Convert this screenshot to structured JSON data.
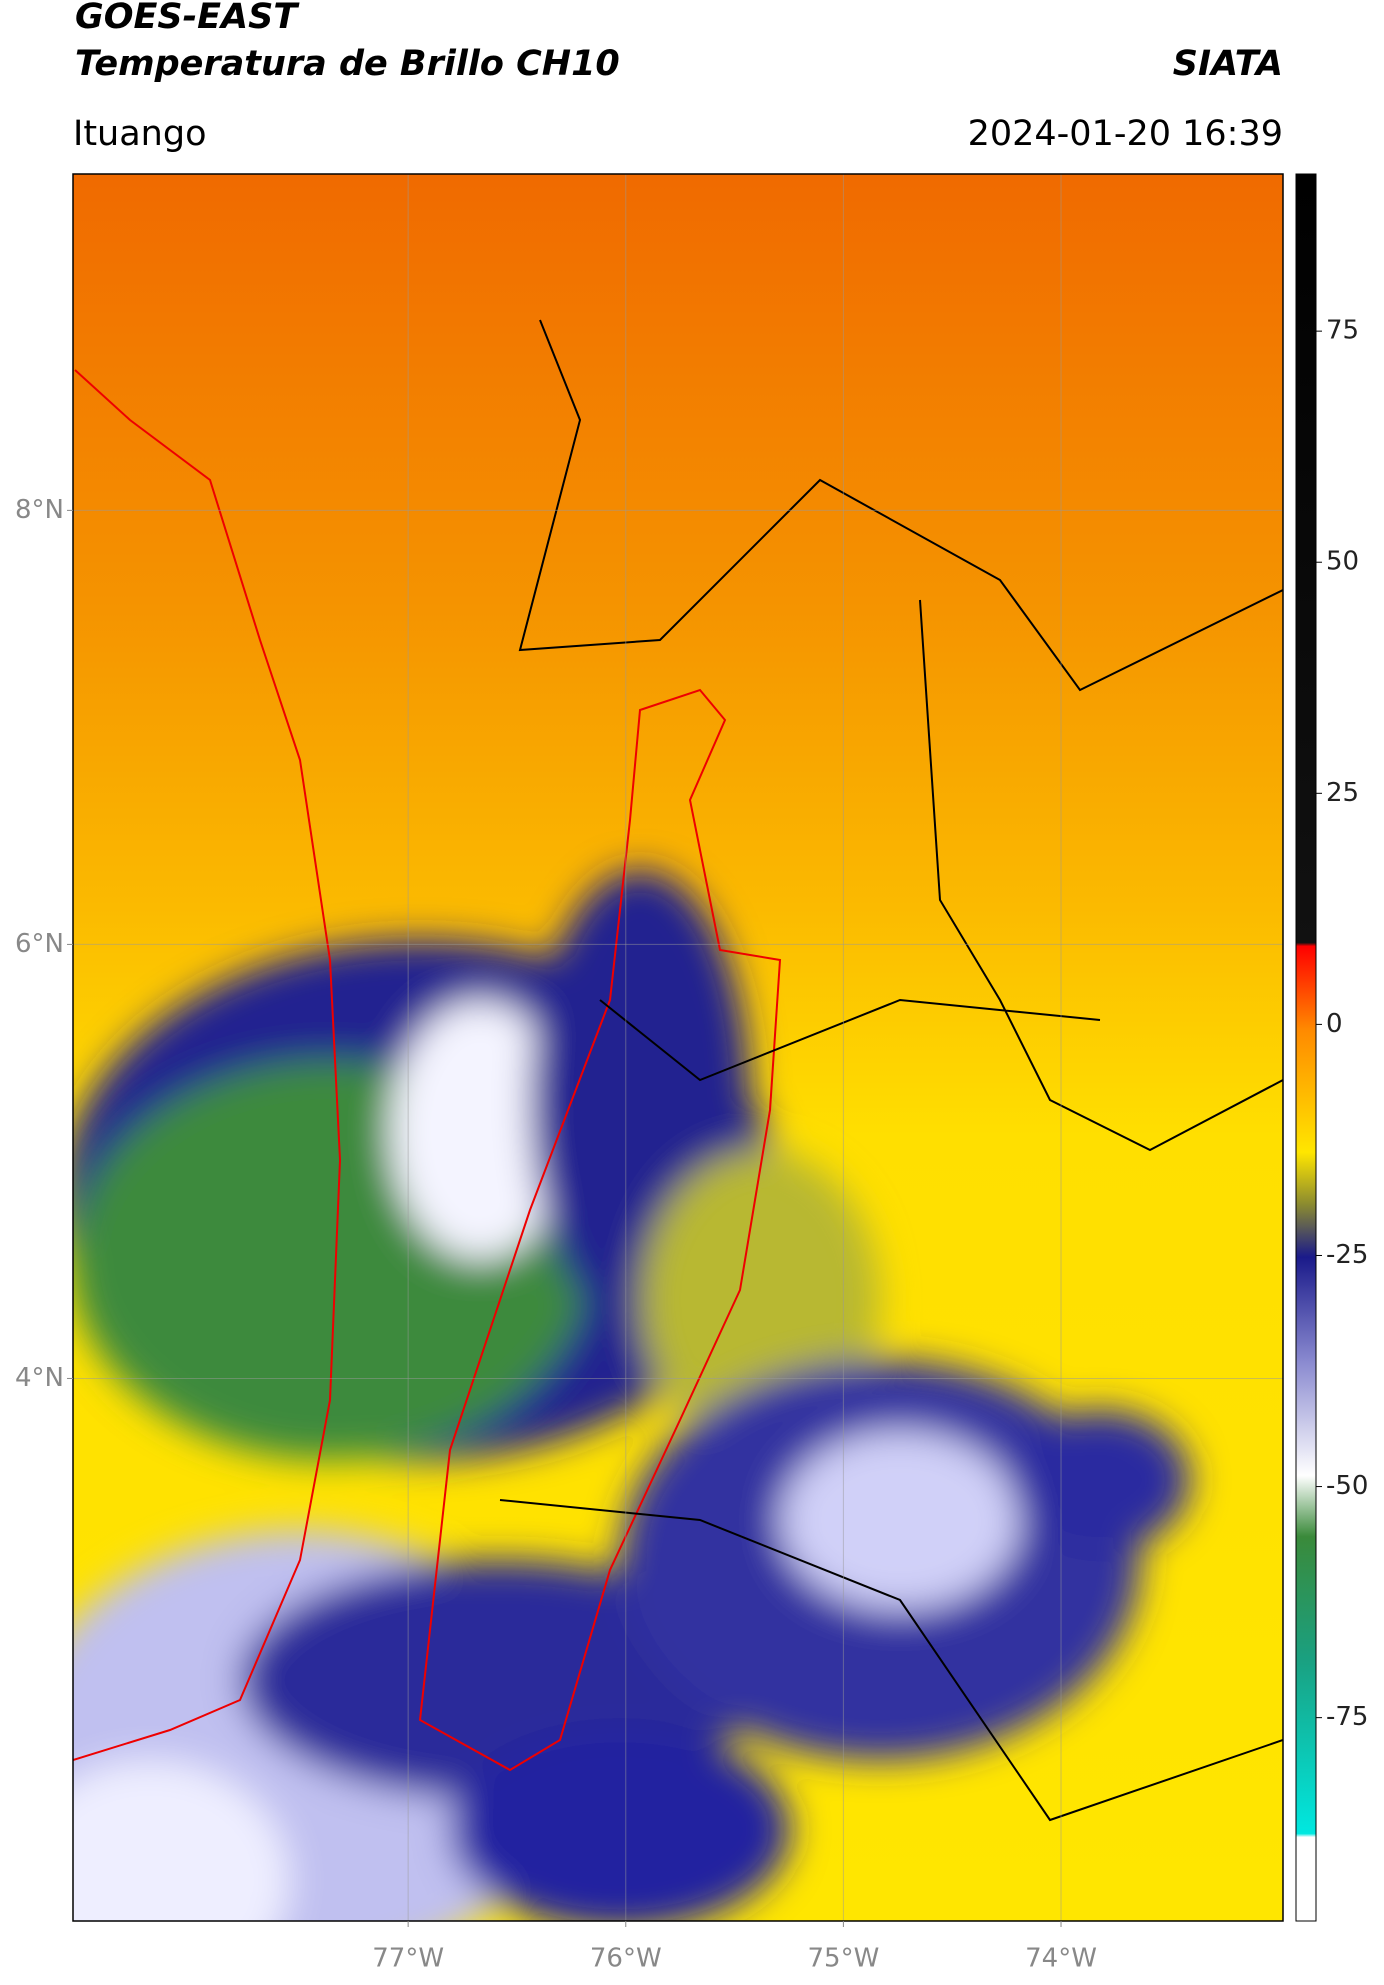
{
  "header": {
    "title": "GOES-EAST",
    "subtitle": "Temperatura de Brillo CH10",
    "brand": "SIATA",
    "location": "Ituango",
    "datetime": "2024-01-20 16:39"
  },
  "map": {
    "latlim": [
      1.5,
      9.55
    ],
    "lonlim": [
      -78.54,
      -72.98
    ],
    "lat_ticks": [
      {
        "value": 8,
        "label": "8°N"
      },
      {
        "value": 6,
        "label": "6°N"
      },
      {
        "value": 4,
        "label": "4°N"
      }
    ],
    "lon_ticks": [
      {
        "value": -77,
        "label": "77°W"
      },
      {
        "value": -76,
        "label": "76°W"
      },
      {
        "value": -75,
        "label": "75°W"
      },
      {
        "value": -74,
        "label": "74°W"
      }
    ]
  },
  "colorbar": {
    "lim": [
      -97,
      92
    ],
    "ticks": [
      75,
      50,
      25,
      0,
      -25,
      -50,
      -75
    ]
  }
}
